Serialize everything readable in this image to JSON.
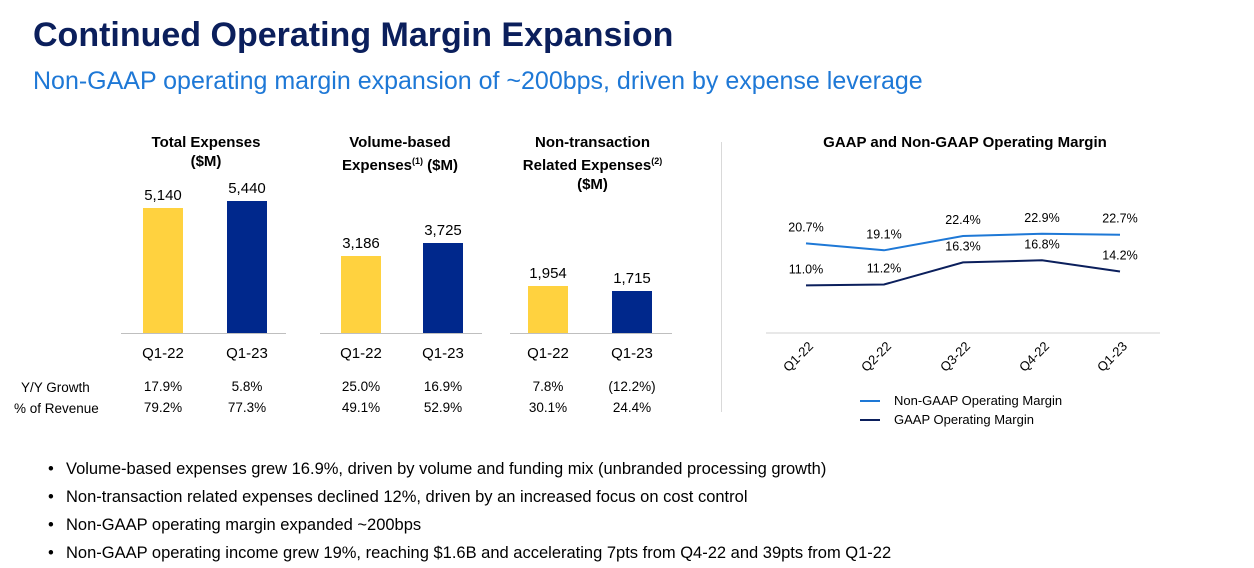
{
  "header": {
    "title": "Continued Operating Margin Expansion",
    "subtitle": "Non-GAAP operating margin expansion of ~200bps, driven by expense leverage"
  },
  "colors": {
    "q1_22": "#FFD23F",
    "q1_23": "#00288C",
    "non_gaap": "#1E78D6",
    "gaap": "#0B1F5C"
  },
  "row_labels": {
    "growth": "Y/Y Growth",
    "revenue": "% of Revenue"
  },
  "chart_data": [
    {
      "type": "bar",
      "title_line1": "Total Expenses",
      "title_line2": "($M)",
      "categories": [
        "Q1-22",
        "Q1-23"
      ],
      "values": [
        5140,
        5440
      ],
      "value_labels": [
        "5,140",
        "5,440"
      ],
      "yoy_growth": [
        "17.9%",
        "5.8%"
      ],
      "pct_revenue": [
        "79.2%",
        "77.3%"
      ]
    },
    {
      "type": "bar",
      "title_line1": "Volume-based",
      "title_line2a": "Expenses",
      "title_sup": "(1)",
      "title_line2b": " ($M)",
      "categories": [
        "Q1-22",
        "Q1-23"
      ],
      "values": [
        3186,
        3725
      ],
      "value_labels": [
        "3,186",
        "3,725"
      ],
      "yoy_growth": [
        "25.0%",
        "16.9%"
      ],
      "pct_revenue": [
        "49.1%",
        "52.9%"
      ]
    },
    {
      "type": "bar",
      "title_line1": "Non-transaction",
      "title_line2a": "Related Expenses",
      "title_sup": "(2)",
      "title_line3": "($M)",
      "categories": [
        "Q1-22",
        "Q1-23"
      ],
      "values": [
        1954,
        1715
      ],
      "value_labels": [
        "1,954",
        "1,715"
      ],
      "yoy_growth": [
        "7.8%",
        "(12.2%)"
      ],
      "pct_revenue": [
        "30.1%",
        "24.4%"
      ]
    },
    {
      "type": "line",
      "title": "GAAP and Non-GAAP Operating Margin",
      "categories": [
        "Q1-22",
        "Q2-22",
        "Q3-22",
        "Q4-22",
        "Q1-23"
      ],
      "series": [
        {
          "name": "Non-GAAP Operating Margin",
          "values": [
            20.7,
            19.1,
            22.4,
            22.9,
            22.7
          ],
          "labels": [
            "20.7%",
            "19.1%",
            "22.4%",
            "22.9%",
            "22.7%"
          ]
        },
        {
          "name": "GAAP Operating Margin",
          "values": [
            11.0,
            11.2,
            16.3,
            16.8,
            14.2
          ],
          "labels": [
            "11.0%",
            "11.2%",
            "16.3%",
            "16.8%",
            "14.2%"
          ]
        }
      ],
      "ylim": [
        0,
        27
      ]
    }
  ],
  "bullets": [
    "Volume-based expenses grew 16.9%, driven by volume and funding mix (unbranded processing growth)",
    "Non-transaction related expenses declined 12%, driven by an increased focus on cost control",
    "Non-GAAP operating margin expanded ~200bps",
    "Non-GAAP operating income grew 19%, reaching $1.6B and accelerating 7pts from Q4-22 and 39pts from Q1-22"
  ]
}
